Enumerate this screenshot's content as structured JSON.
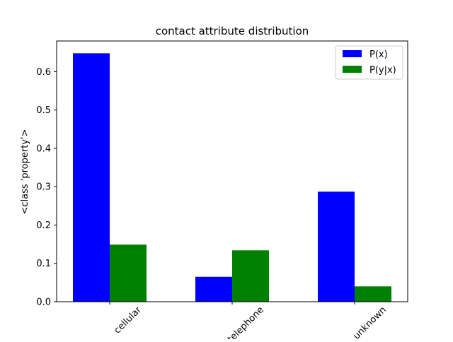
{
  "chart_data": {
    "type": "bar",
    "title": "contact attribute distribution",
    "xlabel": "",
    "ylabel": "<class 'property'>",
    "categories": [
      "cellular",
      "telephone",
      "unknown"
    ],
    "series": [
      {
        "name": "P(x)",
        "color": "#0000ff",
        "values": [
          0.648,
          0.065,
          0.287
        ]
      },
      {
        "name": "P(y|x)",
        "color": "#008000",
        "values": [
          0.149,
          0.134,
          0.04
        ]
      }
    ],
    "ylim": [
      0,
      0.68
    ],
    "yticks": [
      0.0,
      0.1,
      0.2,
      0.3,
      0.4,
      0.5,
      0.6
    ],
    "ytick_labels": [
      "0.0",
      "0.1",
      "0.2",
      "0.3",
      "0.4",
      "0.5",
      "0.6"
    ],
    "xtick_rotation_deg": 45,
    "legend_position": "top-right",
    "grid": false
  }
}
